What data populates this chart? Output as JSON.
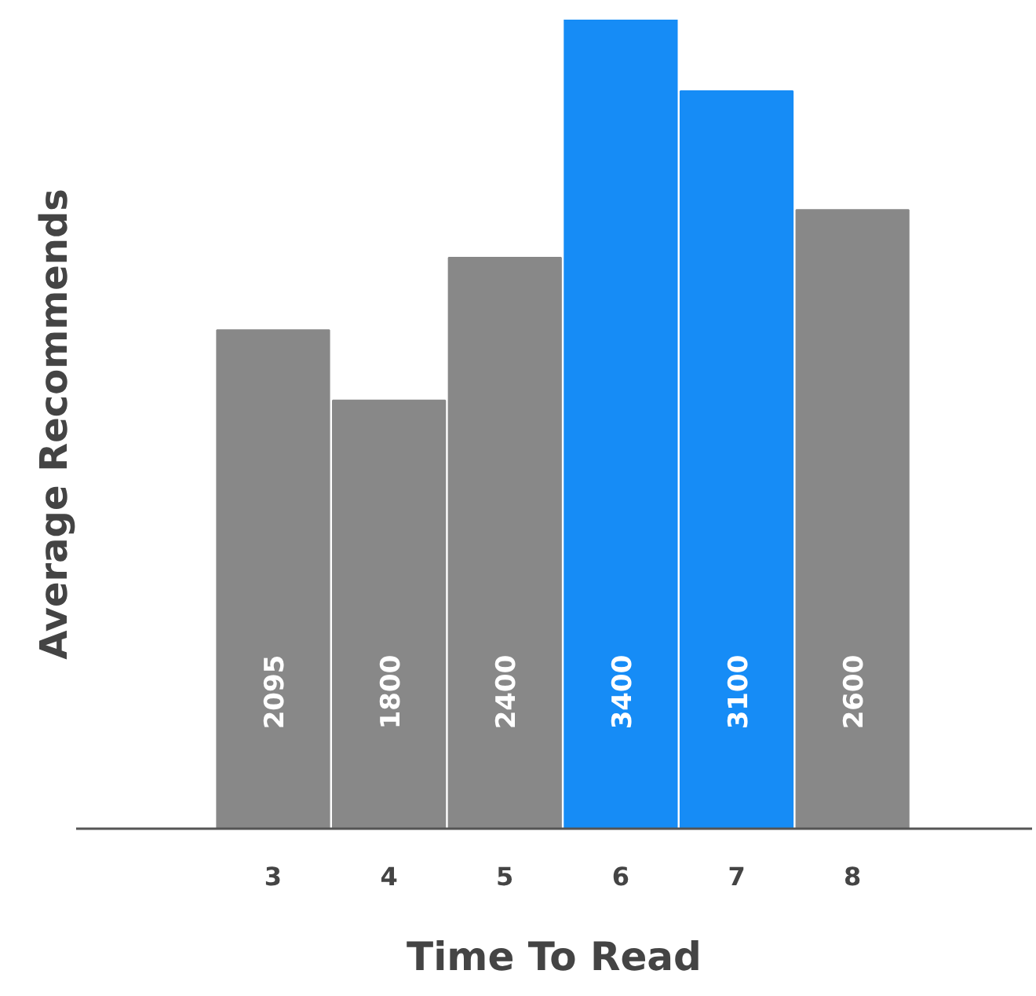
{
  "chart_data": {
    "type": "bar",
    "xlabel": "Time To Read",
    "ylabel": "Average Recommends",
    "categories": [
      "3",
      "4",
      "5",
      "6",
      "7",
      "8"
    ],
    "values": [
      2095,
      1800,
      2400,
      3400,
      3100,
      2600
    ],
    "colors": [
      "#888888",
      "#888888",
      "#888888",
      "#168cf6",
      "#168cf6",
      "#888888"
    ],
    "data_labels": true,
    "grid": false
  }
}
